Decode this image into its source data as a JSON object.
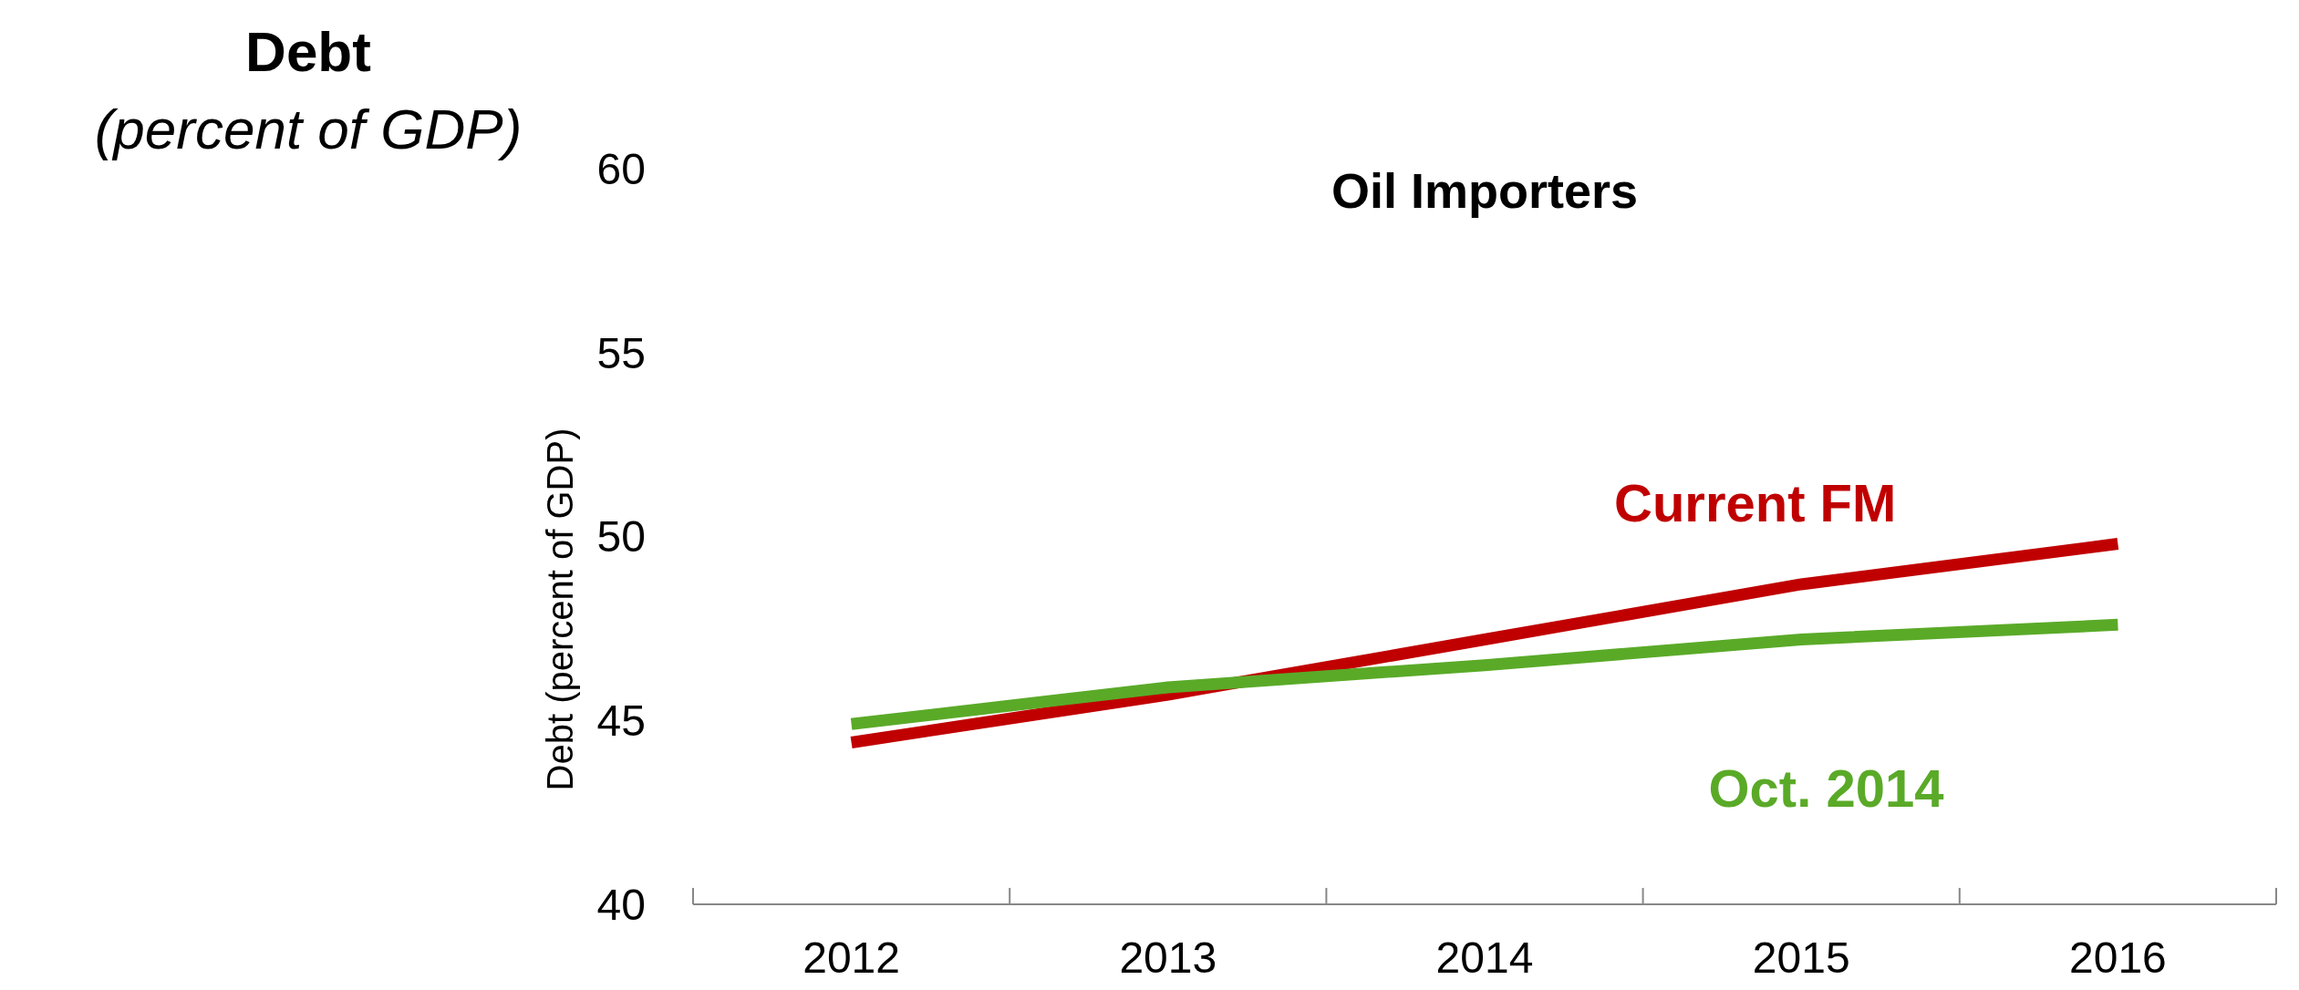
{
  "chart_data": {
    "type": "line",
    "title": "Oil Importers",
    "ylabel": "Debt (percent of GDP)",
    "annotations": [
      "Debt",
      "(percent of GDP)"
    ],
    "categories": [
      "2012",
      "2013",
      "2014",
      "2015",
      "2016"
    ],
    "series": [
      {
        "name": "Current FM",
        "color": "#c00000",
        "values": [
          44.4,
          45.7,
          47.2,
          48.7,
          49.8
        ]
      },
      {
        "name": "Oct. 2014",
        "color": "#5aaa28",
        "values": [
          44.9,
          45.9,
          46.5,
          47.2,
          47.6
        ]
      }
    ],
    "ylim": [
      40,
      60
    ],
    "yticks": [
      40,
      45,
      50,
      55,
      60
    ],
    "grid": false,
    "marker": "none",
    "line_style": "solid"
  }
}
